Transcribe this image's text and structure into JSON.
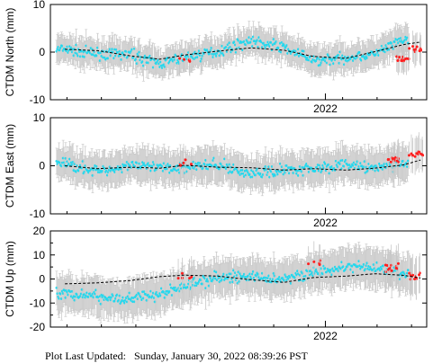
{
  "footer": {
    "label": "Plot Last Updated:",
    "timestamp": "Sunday, January 30, 2022 08:39:26 PST"
  },
  "colors": {
    "daily": "#22d8ee",
    "rapid": "#ff1f1f",
    "errorbar": "#c8c8c8",
    "trend": "#000000"
  },
  "chart_data": [
    {
      "type": "scatter",
      "panel": "north",
      "ylabel": "CTDM North (mm)",
      "ylim": [
        -10,
        10
      ],
      "yticks": [
        -10,
        0,
        10
      ],
      "x_tick_label": "2022",
      "grid": false,
      "approx_error_mm": 2.5,
      "trend": [
        [
          2021.37,
          0.6
        ],
        [
          2021.45,
          0.3
        ],
        [
          2021.53,
          -0.8
        ],
        [
          2021.6,
          -1.5
        ],
        [
          2021.66,
          -0.6
        ],
        [
          2021.74,
          0.2
        ],
        [
          2021.82,
          0.9
        ],
        [
          2021.9,
          0.4
        ],
        [
          2021.97,
          -0.9
        ],
        [
          2022.05,
          -1.3
        ],
        [
          2022.12,
          0.1
        ],
        [
          2022.19,
          1.6
        ],
        [
          2022.23,
          2.1
        ]
      ],
      "series": [
        {
          "values": [
            [
              2021.37,
              0.5
            ],
            [
              2021.45,
              -0.4
            ],
            [
              2021.53,
              -0.5
            ],
            [
              2021.6,
              -2.5
            ],
            [
              2021.66,
              -1.2
            ],
            [
              2021.74,
              0.2
            ],
            [
              2021.82,
              2.4
            ],
            [
              2021.9,
              1.0
            ],
            [
              2021.97,
              -1.8
            ],
            [
              2022.05,
              -1.2
            ],
            [
              2022.12,
              -0.4
            ],
            [
              2022.19,
              2.6
            ]
          ]
        },
        {
          "values": [
            [
              2021.66,
              -1.8
            ],
            [
              2022.19,
              -1.5
            ],
            [
              2022.22,
              0.5
            ]
          ]
        }
      ]
    },
    {
      "type": "scatter",
      "panel": "east",
      "ylabel": "CTDM East (mm)",
      "ylim": [
        -10,
        10
      ],
      "yticks": [
        -10,
        0,
        10
      ],
      "x_tick_label": "2022",
      "grid": false,
      "approx_error_mm": 3.0,
      "trend": [
        [
          2021.37,
          0.0
        ],
        [
          2021.45,
          -0.6
        ],
        [
          2021.53,
          -0.3
        ],
        [
          2021.6,
          -0.5
        ],
        [
          2021.66,
          0.1
        ],
        [
          2021.74,
          -0.3
        ],
        [
          2021.82,
          -0.4
        ],
        [
          2021.9,
          -0.9
        ],
        [
          2021.97,
          -0.6
        ],
        [
          2022.05,
          -0.9
        ],
        [
          2022.12,
          -0.5
        ],
        [
          2022.19,
          0.2
        ],
        [
          2022.23,
          1.2
        ]
      ],
      "series": [
        {
          "values": [
            [
              2021.37,
              0.6
            ],
            [
              2021.45,
              -1.2
            ],
            [
              2021.53,
              0.2
            ],
            [
              2021.6,
              -0.6
            ],
            [
              2021.66,
              -0.2
            ],
            [
              2021.74,
              0.3
            ],
            [
              2021.82,
              -1.8
            ],
            [
              2021.9,
              -0.8
            ],
            [
              2021.97,
              -0.5
            ],
            [
              2022.05,
              0.3
            ],
            [
              2022.12,
              -0.6
            ],
            [
              2022.19,
              0.6
            ]
          ]
        },
        {
          "values": [
            [
              2021.66,
              0.6
            ],
            [
              2022.16,
              1.2
            ],
            [
              2022.22,
              2.5
            ]
          ]
        }
      ]
    },
    {
      "type": "scatter",
      "panel": "up",
      "ylabel": "CTDM Up (mm)",
      "ylim": [
        -20,
        20
      ],
      "yticks": [
        -20,
        -10,
        0,
        10,
        20
      ],
      "x_tick_label": "2022",
      "grid": false,
      "approx_error_mm": 6.5,
      "trend": [
        [
          2021.37,
          -2.0
        ],
        [
          2021.45,
          -1.6
        ],
        [
          2021.53,
          -0.6
        ],
        [
          2021.6,
          1.0
        ],
        [
          2021.66,
          1.6
        ],
        [
          2021.74,
          1.2
        ],
        [
          2021.82,
          -0.3
        ],
        [
          2021.9,
          -1.4
        ],
        [
          2021.97,
          0.6
        ],
        [
          2022.05,
          1.2
        ],
        [
          2022.12,
          2.2
        ],
        [
          2022.19,
          1.5
        ],
        [
          2022.23,
          0.4
        ]
      ],
      "series": [
        {
          "values": [
            [
              2021.37,
              -6.0
            ],
            [
              2021.45,
              -7.5
            ],
            [
              2021.53,
              -8.0
            ],
            [
              2021.6,
              -6.5
            ],
            [
              2021.66,
              -3.0
            ],
            [
              2021.74,
              0.5
            ],
            [
              2021.82,
              1.0
            ],
            [
              2021.9,
              0.0
            ],
            [
              2021.97,
              2.5
            ],
            [
              2022.05,
              5.0
            ],
            [
              2022.12,
              4.5
            ],
            [
              2022.19,
              2.0
            ]
          ]
        },
        {
          "values": [
            [
              2021.66,
              1.5
            ],
            [
              2021.97,
              7.0
            ],
            [
              2022.16,
              5.0
            ],
            [
              2022.22,
              1.0
            ]
          ]
        }
      ]
    }
  ]
}
